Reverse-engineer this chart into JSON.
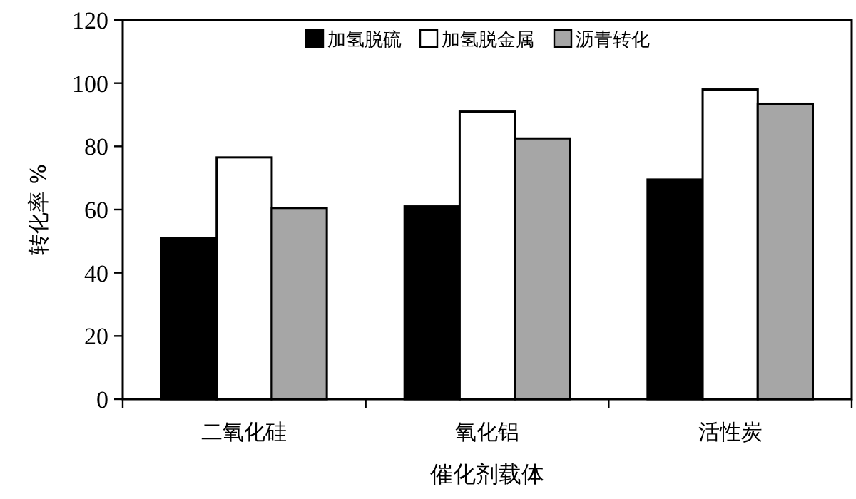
{
  "chart_data": {
    "type": "bar",
    "xlabel": "催化剂载体",
    "ylabel": "转化率 %",
    "categories": [
      "二氧化硅",
      "氧化铝",
      "活性炭"
    ],
    "series": [
      {
        "name": "加氢脱硫",
        "color": "#000000",
        "values": [
          51,
          61,
          69.5
        ]
      },
      {
        "name": "加氢脱金属",
        "color": "#ffffff",
        "values": [
          76.5,
          91,
          98
        ]
      },
      {
        "name": "沥青转化",
        "color": "#a6a6a6",
        "values": [
          60.5,
          82.5,
          93.5
        ]
      }
    ],
    "ylim": [
      0,
      120
    ],
    "yticks": [
      0,
      20,
      40,
      60,
      80,
      100,
      120
    ],
    "grid": false,
    "legend": "top"
  }
}
